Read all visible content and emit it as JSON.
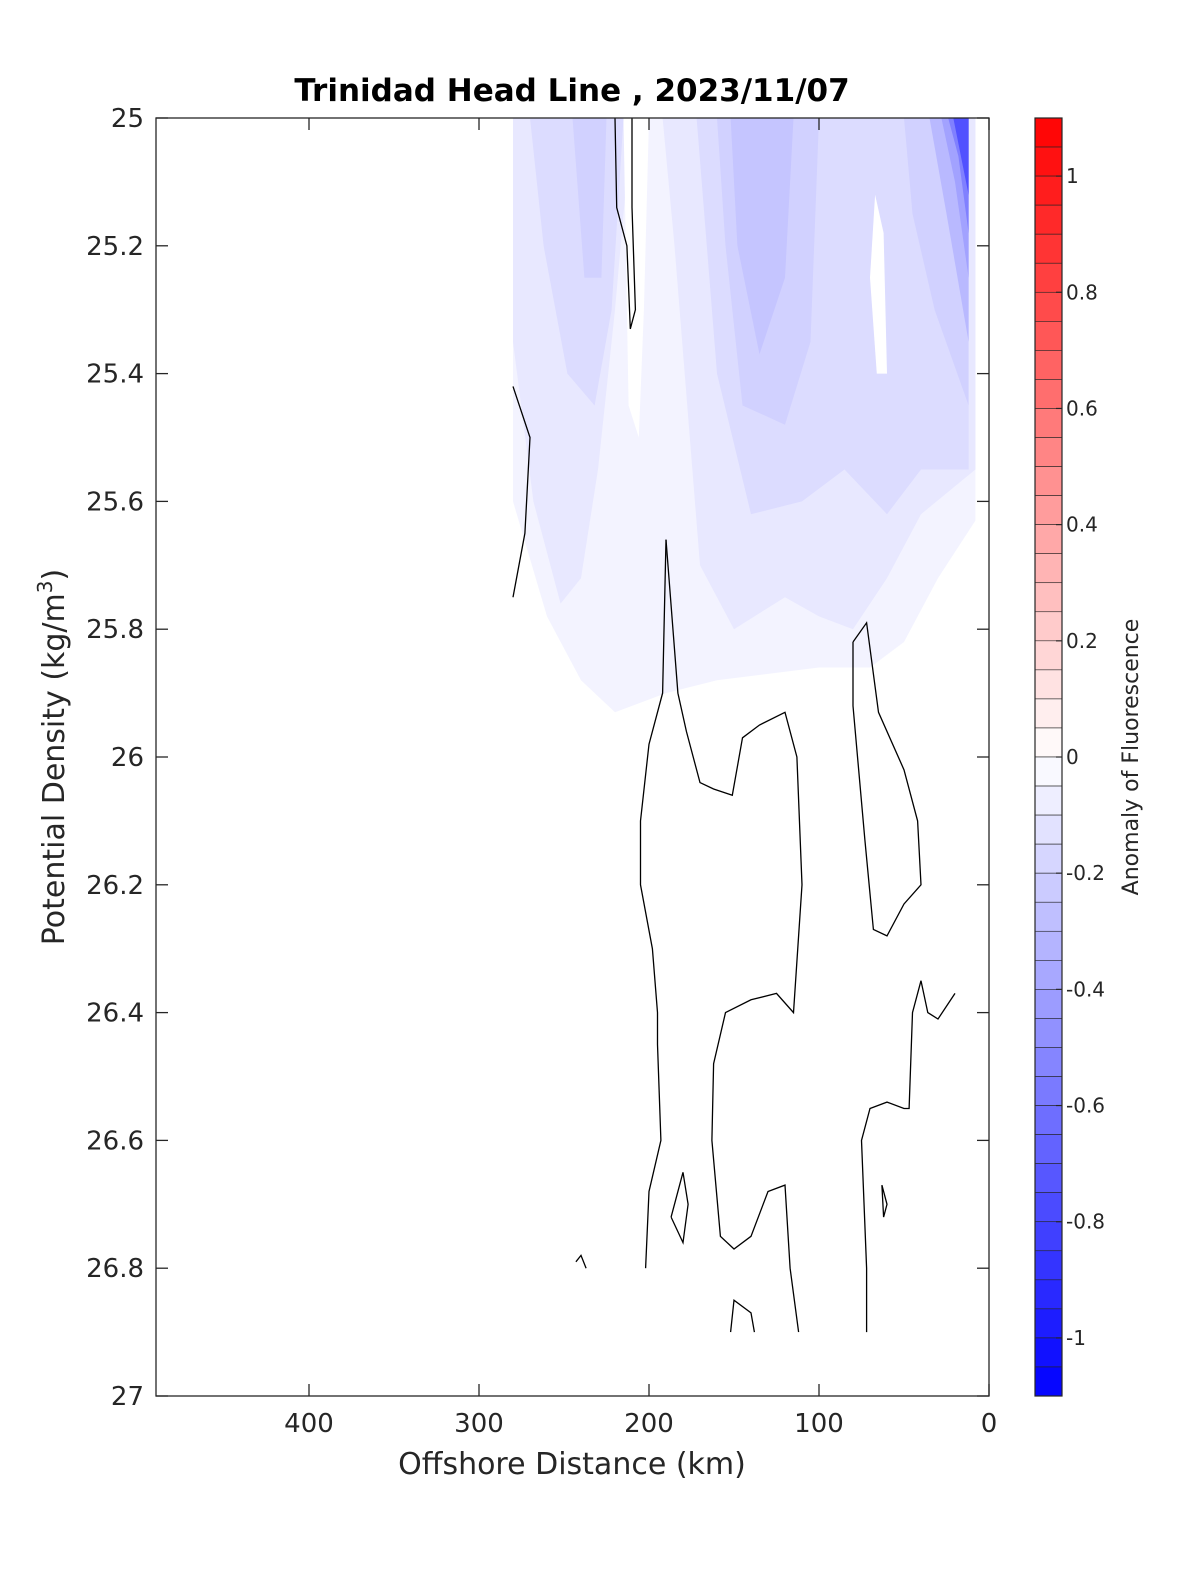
{
  "chart_data": {
    "type": "contour",
    "title": "Trinidad Head Line , 2023/11/07",
    "xlabel": "Offshore Distance (km)",
    "ylabel": "Potential Density (kg/m",
    "ylabel_sup": "3",
    "ylabel_close": ")",
    "colorbar_label": "Anomaly of Fluorescence",
    "xlim": [
      490,
      0
    ],
    "ylim": [
      25,
      27
    ],
    "x_reversed": true,
    "y_reversed": true,
    "xticks": [
      400,
      300,
      200,
      100,
      0
    ],
    "xtick_labels": [
      "400",
      "300",
      "200",
      "100",
      "0"
    ],
    "yticks": [
      25,
      25.2,
      25.4,
      25.6,
      25.8,
      26,
      26.2,
      26.4,
      26.6,
      26.8,
      27
    ],
    "ytick_labels": [
      "25",
      "25.2",
      "25.4",
      "25.6",
      "25.8",
      "26",
      "26.2",
      "26.4",
      "26.6",
      "26.8",
      "27"
    ],
    "clim": [
      -1.1,
      1.1
    ],
    "colorbar_step": 0.05,
    "colorbar_ticks": [
      1,
      0.8,
      0.6,
      0.4,
      0.2,
      0,
      -0.2,
      -0.4,
      -0.6,
      -0.8,
      -1
    ],
    "colorbar_tick_labels": [
      "1",
      "0.8",
      "0.6",
      "0.4",
      "0.2",
      "0",
      "-0.2",
      "-0.4",
      "-0.6",
      "-0.8",
      "-1"
    ],
    "colors": {
      "negative_end": "#0000ff",
      "positive_end": "#ff0000",
      "zero": "#ffffff",
      "contour_line": "#000000"
    },
    "filled_regions": [
      {
        "level": -0.05,
        "points": [
          [
            280,
            25
          ],
          [
            8,
            25
          ],
          [
            8,
            25.63
          ],
          [
            30,
            25.72
          ],
          [
            50,
            25.82
          ],
          [
            70,
            25.86
          ],
          [
            100,
            25.86
          ],
          [
            130,
            25.87
          ],
          [
            160,
            25.88
          ],
          [
            190,
            25.9
          ],
          [
            220,
            25.93
          ],
          [
            240,
            25.88
          ],
          [
            260,
            25.78
          ],
          [
            280,
            25.6
          ]
        ]
      },
      {
        "level": -0.1,
        "points": [
          [
            280,
            25
          ],
          [
            210,
            25
          ],
          [
            220,
            25.3
          ],
          [
            230,
            25.55
          ],
          [
            240,
            25.72
          ],
          [
            252,
            25.76
          ],
          [
            268,
            25.6
          ],
          [
            280,
            25.35
          ]
        ]
      },
      {
        "level": -0.1,
        "points": [
          [
            192,
            25
          ],
          [
            8,
            25
          ],
          [
            8,
            25.55
          ],
          [
            40,
            25.62
          ],
          [
            60,
            25.72
          ],
          [
            80,
            25.8
          ],
          [
            100,
            25.78
          ],
          [
            120,
            25.75
          ],
          [
            150,
            25.8
          ],
          [
            170,
            25.7
          ],
          [
            185,
            25.2
          ]
        ]
      },
      {
        "level": -0.15,
        "points": [
          [
            270,
            25
          ],
          [
            215,
            25
          ],
          [
            222,
            25.3
          ],
          [
            232,
            25.45
          ],
          [
            248,
            25.4
          ],
          [
            262,
            25.2
          ]
        ]
      },
      {
        "level": -0.15,
        "points": [
          [
            172,
            25
          ],
          [
            12,
            25
          ],
          [
            12,
            25.55
          ],
          [
            40,
            25.55
          ],
          [
            60,
            25.62
          ],
          [
            85,
            25.55
          ],
          [
            110,
            25.6
          ],
          [
            140,
            25.62
          ],
          [
            160,
            25.4
          ]
        ]
      },
      {
        "level": -0.2,
        "points": [
          [
            245,
            25
          ],
          [
            225,
            25
          ],
          [
            228,
            25.25
          ],
          [
            238,
            25.25
          ]
        ]
      },
      {
        "level": -0.2,
        "points": [
          [
            160,
            25
          ],
          [
            100,
            25
          ],
          [
            105,
            25.35
          ],
          [
            120,
            25.48
          ],
          [
            145,
            25.45
          ],
          [
            155,
            25.2
          ]
        ]
      },
      {
        "level": -0.2,
        "points": [
          [
            50,
            25
          ],
          [
            12,
            25
          ],
          [
            12,
            25.45
          ],
          [
            32,
            25.3
          ],
          [
            45,
            25.15
          ]
        ]
      },
      {
        "level": -0.25,
        "points": [
          [
            152,
            25
          ],
          [
            115,
            25
          ],
          [
            120,
            25.25
          ],
          [
            135,
            25.37
          ],
          [
            148,
            25.2
          ]
        ]
      },
      {
        "level": -0.3,
        "points": [
          [
            35,
            25
          ],
          [
            12,
            25
          ],
          [
            12,
            25.35
          ],
          [
            25,
            25.15
          ]
        ]
      },
      {
        "level": -0.4,
        "points": [
          [
            28,
            25
          ],
          [
            12,
            25
          ],
          [
            12,
            25.25
          ],
          [
            20,
            25.1
          ]
        ]
      },
      {
        "level": -0.55,
        "points": [
          [
            24,
            25
          ],
          [
            12,
            25
          ],
          [
            12,
            25.18
          ],
          [
            18,
            25.06
          ]
        ]
      },
      {
        "level": -0.75,
        "points": [
          [
            21,
            25
          ],
          [
            12,
            25
          ],
          [
            12,
            25.12
          ]
        ]
      }
    ],
    "blank_regions": [
      {
        "level": 0,
        "points": [
          [
            215,
            25
          ],
          [
            200,
            25
          ],
          [
            203,
            25.3
          ],
          [
            206,
            25.5
          ],
          [
            212,
            25.45
          ]
        ]
      },
      {
        "level": 0,
        "points": [
          [
            67,
            25.12
          ],
          [
            62,
            25.18
          ],
          [
            60,
            25.4
          ],
          [
            66,
            25.4
          ],
          [
            70,
            25.25
          ]
        ]
      }
    ],
    "contour_lines": [
      [
        [
          220,
          25
        ],
        [
          219,
          25.14
        ],
        [
          213,
          25.2
        ],
        [
          211,
          25.33
        ],
        [
          208,
          25.3
        ],
        [
          210,
          25.14
        ],
        [
          210,
          25
        ]
      ],
      [
        [
          280,
          25.42
        ],
        [
          270,
          25.5
        ],
        [
          273,
          25.65
        ],
        [
          280,
          25.75
        ]
      ],
      [
        [
          190,
          25.66
        ],
        [
          192,
          25.9
        ],
        [
          200,
          25.98
        ],
        [
          205,
          26.1
        ],
        [
          205,
          26.2
        ],
        [
          198,
          26.3
        ],
        [
          195,
          26.4
        ],
        [
          195,
          26.45
        ],
        [
          193,
          26.6
        ],
        [
          200,
          26.68
        ],
        [
          202,
          26.8
        ]
      ],
      [
        [
          190,
          25.66
        ],
        [
          183,
          25.9
        ],
        [
          178,
          25.96
        ],
        [
          170,
          26.04
        ],
        [
          162,
          26.05
        ],
        [
          151,
          26.06
        ],
        [
          145,
          25.97
        ],
        [
          135,
          25.95
        ],
        [
          120,
          25.93
        ],
        [
          113,
          26
        ],
        [
          110,
          26.2
        ],
        [
          115,
          26.4
        ],
        [
          125,
          26.37
        ],
        [
          140,
          26.38
        ],
        [
          155,
          26.4
        ],
        [
          162,
          26.48
        ],
        [
          163,
          26.6
        ],
        [
          158,
          26.75
        ],
        [
          150,
          26.77
        ],
        [
          140,
          26.75
        ],
        [
          130,
          26.68
        ],
        [
          120,
          26.67
        ],
        [
          117,
          26.8
        ],
        [
          112,
          26.9
        ]
      ],
      [
        [
          187,
          26.72
        ],
        [
          180,
          26.65
        ],
        [
          177,
          26.7
        ],
        [
          180,
          26.76
        ],
        [
          187,
          26.72
        ]
      ],
      [
        [
          243,
          26.79
        ],
        [
          240,
          26.78
        ],
        [
          237,
          26.8
        ]
      ],
      [
        [
          152,
          26.9
        ],
        [
          150,
          26.85
        ],
        [
          140,
          26.87
        ],
        [
          138,
          26.9
        ]
      ],
      [
        [
          80,
          25.82
        ],
        [
          72,
          25.79
        ],
        [
          65,
          25.93
        ],
        [
          50,
          26.02
        ],
        [
          42,
          26.1
        ],
        [
          40,
          26.2
        ],
        [
          50,
          26.23
        ],
        [
          60,
          26.28
        ],
        [
          68,
          26.27
        ],
        [
          73,
          26.13
        ],
        [
          80,
          25.92
        ],
        [
          80,
          25.82
        ]
      ],
      [
        [
          40,
          26.35
        ],
        [
          36,
          26.4
        ],
        [
          30,
          26.41
        ],
        [
          20,
          26.37
        ]
      ],
      [
        [
          40,
          26.35
        ],
        [
          45,
          26.4
        ],
        [
          47,
          26.55
        ],
        [
          50,
          26.55
        ],
        [
          60,
          26.54
        ],
        [
          70,
          26.55
        ],
        [
          75,
          26.6
        ],
        [
          72,
          26.8
        ],
        [
          72,
          26.9
        ]
      ],
      [
        [
          63,
          26.67
        ],
        [
          60,
          26.7
        ],
        [
          62,
          26.72
        ],
        [
          63,
          26.67
        ]
      ]
    ]
  }
}
